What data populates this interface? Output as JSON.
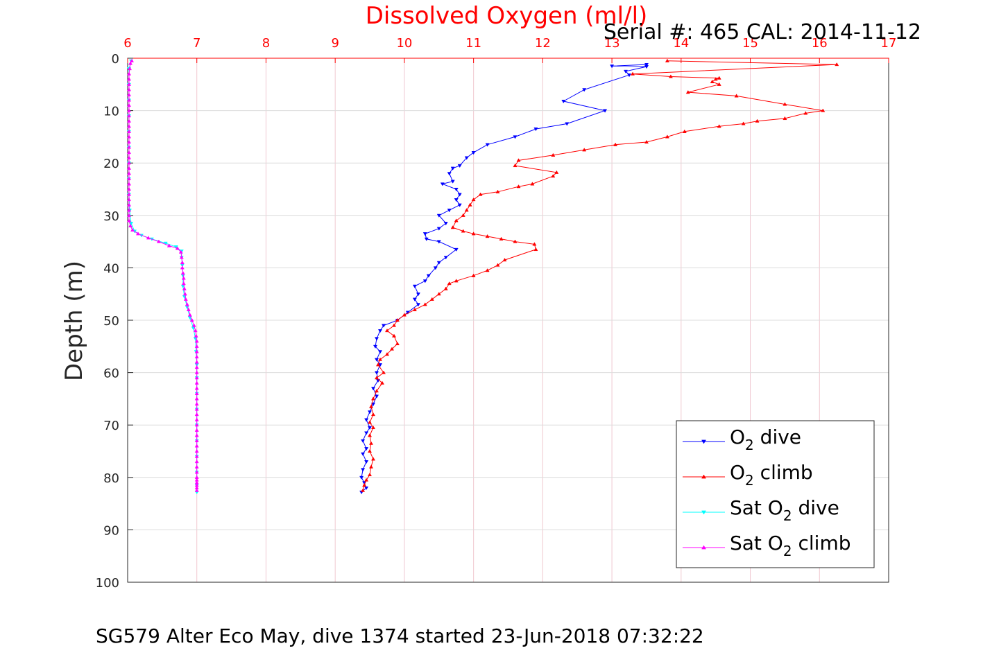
{
  "chart_data": {
    "type": "line",
    "title": "Dissolved Oxygen (ml/l)",
    "serial": "Serial #: 465  CAL: 2014-11-12",
    "ylabel": "Depth (m)",
    "caption": "SG579 Alter Eco May, dive 1374 started 23-Jun-2018 07:32:22",
    "xlim": [
      6,
      17
    ],
    "ylim": [
      0,
      100
    ],
    "y_reversed": true,
    "x_axis_position": "top",
    "grid": true,
    "legend_position": "lower-right",
    "x_ticks": [
      "6",
      "7",
      "8",
      "9",
      "10",
      "11",
      "12",
      "13",
      "14",
      "15",
      "16",
      "17"
    ],
    "y_ticks": [
      "0",
      "10",
      "20",
      "30",
      "40",
      "50",
      "60",
      "70",
      "80",
      "90",
      "100"
    ],
    "colors": {
      "grid_x": "#f0c8d0",
      "grid_y": "#dcdcdc",
      "top_axis": "#ff0000",
      "axis": "#262626"
    },
    "series": [
      {
        "name": "O2 dive",
        "legend_main": "O",
        "legend_sub": "2",
        "legend_rest": " dive",
        "color": "#0000ff",
        "marker": "down-triangle",
        "points": [
          [
            13.5,
            1.2
          ],
          [
            13.0,
            1.5
          ],
          [
            13.5,
            1.6
          ],
          [
            13.2,
            2.5
          ],
          [
            13.25,
            3.2
          ],
          [
            12.6,
            6
          ],
          [
            12.3,
            8.2
          ],
          [
            12.9,
            10
          ],
          [
            12.35,
            12.5
          ],
          [
            11.9,
            13.5
          ],
          [
            11.6,
            15
          ],
          [
            11.2,
            16.5
          ],
          [
            11.0,
            18
          ],
          [
            10.9,
            19
          ],
          [
            10.8,
            20.5
          ],
          [
            10.7,
            21
          ],
          [
            10.65,
            22
          ],
          [
            10.7,
            23.5
          ],
          [
            10.55,
            24
          ],
          [
            10.75,
            25
          ],
          [
            10.8,
            26
          ],
          [
            10.75,
            27
          ],
          [
            10.8,
            28
          ],
          [
            10.65,
            29
          ],
          [
            10.5,
            30
          ],
          [
            10.6,
            31.5
          ],
          [
            10.5,
            32.5
          ],
          [
            10.3,
            33.5
          ],
          [
            10.32,
            34.5
          ],
          [
            10.5,
            35
          ],
          [
            10.75,
            36.5
          ],
          [
            10.6,
            38
          ],
          [
            10.5,
            39
          ],
          [
            10.45,
            40
          ],
          [
            10.35,
            41.5
          ],
          [
            10.3,
            42.5
          ],
          [
            10.15,
            43.5
          ],
          [
            10.2,
            45
          ],
          [
            10.15,
            46
          ],
          [
            10.2,
            47
          ],
          [
            10.05,
            48.5
          ],
          [
            9.9,
            50
          ],
          [
            9.7,
            51
          ],
          [
            9.65,
            52
          ],
          [
            9.6,
            53.5
          ],
          [
            9.58,
            55
          ],
          [
            9.65,
            56
          ],
          [
            9.6,
            57.5
          ],
          [
            9.65,
            58.5
          ],
          [
            9.6,
            60
          ],
          [
            9.62,
            61.5
          ],
          [
            9.55,
            63
          ],
          [
            9.6,
            64.5
          ],
          [
            9.55,
            66
          ],
          [
            9.5,
            67.5
          ],
          [
            9.45,
            69
          ],
          [
            9.5,
            70.5
          ],
          [
            9.45,
            71.5
          ],
          [
            9.4,
            73
          ],
          [
            9.45,
            74.5
          ],
          [
            9.4,
            75.5
          ],
          [
            9.45,
            77
          ],
          [
            9.4,
            78.5
          ],
          [
            9.38,
            80
          ],
          [
            9.42,
            81
          ],
          [
            9.45,
            82
          ],
          [
            9.38,
            82.8
          ]
        ]
      },
      {
        "name": "O2 climb",
        "legend_main": "O",
        "legend_sub": "2",
        "legend_rest": " climb",
        "color": "#ff0000",
        "marker": "up-triangle",
        "points": [
          [
            9.4,
            82.5
          ],
          [
            9.42,
            81.5
          ],
          [
            9.45,
            80.5
          ],
          [
            9.5,
            79.5
          ],
          [
            9.52,
            78
          ],
          [
            9.55,
            76.5
          ],
          [
            9.5,
            75
          ],
          [
            9.52,
            73.5
          ],
          [
            9.5,
            72
          ],
          [
            9.55,
            70.5
          ],
          [
            9.5,
            69.5
          ],
          [
            9.55,
            68
          ],
          [
            9.52,
            66.5
          ],
          [
            9.55,
            65
          ],
          [
            9.6,
            63.5
          ],
          [
            9.68,
            62
          ],
          [
            9.6,
            61
          ],
          [
            9.7,
            60
          ],
          [
            9.62,
            58.5
          ],
          [
            9.65,
            57.5
          ],
          [
            9.75,
            56.5
          ],
          [
            9.82,
            55.5
          ],
          [
            9.9,
            54.5
          ],
          [
            9.85,
            53
          ],
          [
            9.75,
            52
          ],
          [
            9.85,
            51
          ],
          [
            9.9,
            50
          ],
          [
            10.0,
            49
          ],
          [
            10.15,
            48
          ],
          [
            10.3,
            47
          ],
          [
            10.4,
            46
          ],
          [
            10.5,
            45
          ],
          [
            10.6,
            44
          ],
          [
            10.65,
            43
          ],
          [
            10.75,
            42.5
          ],
          [
            11.0,
            41.5
          ],
          [
            11.2,
            40.5
          ],
          [
            11.35,
            39.5
          ],
          [
            11.45,
            38.5
          ],
          [
            11.9,
            36.5
          ],
          [
            11.88,
            35.5
          ],
          [
            11.6,
            35
          ],
          [
            11.4,
            34.5
          ],
          [
            11.2,
            34
          ],
          [
            11.0,
            33.5
          ],
          [
            10.85,
            33
          ],
          [
            10.7,
            32.3
          ],
          [
            10.75,
            31
          ],
          [
            10.85,
            30
          ],
          [
            10.9,
            29
          ],
          [
            10.95,
            28
          ],
          [
            11.0,
            27
          ],
          [
            11.1,
            26
          ],
          [
            11.35,
            25.5
          ],
          [
            11.65,
            24.5
          ],
          [
            11.85,
            24
          ],
          [
            12.15,
            22.5
          ],
          [
            12.2,
            21.8
          ],
          [
            11.6,
            20.5
          ],
          [
            11.65,
            19.5
          ],
          [
            12.15,
            18.5
          ],
          [
            12.6,
            17.5
          ],
          [
            13.05,
            16.5
          ],
          [
            13.5,
            16
          ],
          [
            13.8,
            15
          ],
          [
            14.05,
            14
          ],
          [
            14.55,
            13
          ],
          [
            14.9,
            12.5
          ],
          [
            15.1,
            12
          ],
          [
            15.5,
            11.5
          ],
          [
            15.8,
            10.5
          ],
          [
            16.05,
            10
          ],
          [
            15.5,
            8.8
          ],
          [
            14.8,
            7.2
          ],
          [
            14.1,
            6.5
          ],
          [
            14.55,
            5
          ],
          [
            14.45,
            4.5
          ],
          [
            14.5,
            4
          ],
          [
            14.55,
            3.8
          ],
          [
            13.85,
            3.5
          ],
          [
            13.3,
            3
          ],
          [
            16.25,
            1.2
          ],
          [
            13.8,
            0.5
          ]
        ]
      },
      {
        "name": "Sat O2 dive",
        "legend_main": "Sat O",
        "legend_sub": "2",
        "legend_rest": " dive",
        "color": "#00ffff",
        "marker": "down-triangle",
        "points": [
          [
            6.05,
            0.5
          ],
          [
            6.02,
            2
          ],
          [
            6.02,
            5
          ],
          [
            6.02,
            8
          ],
          [
            6.02,
            11
          ],
          [
            6.02,
            14
          ],
          [
            6.02,
            17
          ],
          [
            6.02,
            20
          ],
          [
            6.02,
            23
          ],
          [
            6.02,
            26
          ],
          [
            6.03,
            29
          ],
          [
            6.05,
            31.5
          ],
          [
            6.1,
            33
          ],
          [
            6.2,
            33.8
          ],
          [
            6.35,
            34.5
          ],
          [
            6.55,
            35.3
          ],
          [
            6.7,
            36
          ],
          [
            6.78,
            36.8
          ],
          [
            6.78,
            38
          ],
          [
            6.79,
            39.5
          ],
          [
            6.8,
            41.5
          ],
          [
            6.8,
            43.5
          ],
          [
            6.82,
            45.5
          ],
          [
            6.86,
            47.5
          ],
          [
            6.9,
            49.5
          ],
          [
            6.95,
            51.5
          ],
          [
            6.98,
            53.5
          ],
          [
            6.99,
            56
          ],
          [
            7.0,
            58.5
          ],
          [
            7.0,
            61
          ],
          [
            7.0,
            64
          ],
          [
            7.0,
            67
          ],
          [
            7.0,
            70
          ],
          [
            7.0,
            73
          ],
          [
            7.0,
            76
          ],
          [
            7.0,
            79
          ],
          [
            7.0,
            81.5
          ],
          [
            7.0,
            82.8
          ]
        ]
      },
      {
        "name": "Sat O2 climb",
        "legend_main": "Sat O",
        "legend_sub": "2",
        "legend_rest": " climb",
        "color": "#ff00ff",
        "marker": "up-triangle",
        "points": [
          [
            7.0,
            82.5
          ],
          [
            7.0,
            82
          ],
          [
            7.0,
            81.5
          ],
          [
            7.0,
            81
          ],
          [
            7.0,
            80.5
          ],
          [
            7.0,
            80
          ],
          [
            7.0,
            79
          ],
          [
            7.0,
            78
          ],
          [
            7.0,
            77
          ],
          [
            7.0,
            76
          ],
          [
            7.0,
            75
          ],
          [
            7.0,
            74
          ],
          [
            7.0,
            73
          ],
          [
            7.0,
            72
          ],
          [
            7.0,
            71
          ],
          [
            7.0,
            70
          ],
          [
            7.0,
            69
          ],
          [
            7.0,
            68
          ],
          [
            7.0,
            67
          ],
          [
            7.0,
            66
          ],
          [
            7.0,
            65
          ],
          [
            7.0,
            64
          ],
          [
            7.0,
            63
          ],
          [
            7.0,
            62
          ],
          [
            7.0,
            61
          ],
          [
            7.0,
            60
          ],
          [
            7.0,
            59
          ],
          [
            7.0,
            58
          ],
          [
            7.0,
            57
          ],
          [
            7.0,
            56
          ],
          [
            7.0,
            55
          ],
          [
            7.0,
            54
          ],
          [
            6.99,
            53
          ],
          [
            6.98,
            52
          ],
          [
            6.96,
            51
          ],
          [
            6.93,
            50
          ],
          [
            6.9,
            49
          ],
          [
            6.88,
            48
          ],
          [
            6.86,
            47
          ],
          [
            6.84,
            46
          ],
          [
            6.83,
            45
          ],
          [
            6.82,
            44
          ],
          [
            6.81,
            43
          ],
          [
            6.81,
            42
          ],
          [
            6.8,
            41
          ],
          [
            6.79,
            40
          ],
          [
            6.79,
            39
          ],
          [
            6.78,
            38
          ],
          [
            6.77,
            37
          ],
          [
            6.72,
            36.3
          ],
          [
            6.6,
            35.8
          ],
          [
            6.45,
            35
          ],
          [
            6.3,
            34.3
          ],
          [
            6.15,
            33.5
          ],
          [
            6.07,
            32.8
          ],
          [
            6.04,
            32
          ],
          [
            6.02,
            31
          ],
          [
            6.02,
            30
          ],
          [
            6.02,
            29
          ],
          [
            6.02,
            28
          ],
          [
            6.02,
            27
          ],
          [
            6.02,
            26
          ],
          [
            6.02,
            25
          ],
          [
            6.02,
            24
          ],
          [
            6.02,
            23
          ],
          [
            6.02,
            22
          ],
          [
            6.02,
            21
          ],
          [
            6.02,
            20
          ],
          [
            6.02,
            19
          ],
          [
            6.02,
            18
          ],
          [
            6.02,
            17
          ],
          [
            6.02,
            16
          ],
          [
            6.02,
            15
          ],
          [
            6.02,
            14
          ],
          [
            6.02,
            13
          ],
          [
            6.02,
            12
          ],
          [
            6.02,
            11
          ],
          [
            6.02,
            10
          ],
          [
            6.02,
            9
          ],
          [
            6.02,
            8
          ],
          [
            6.02,
            7
          ],
          [
            6.02,
            6
          ],
          [
            6.02,
            5
          ],
          [
            6.02,
            4
          ],
          [
            6.02,
            3
          ],
          [
            6.03,
            2
          ],
          [
            6.04,
            1
          ],
          [
            6.06,
            0.5
          ]
        ]
      }
    ]
  }
}
